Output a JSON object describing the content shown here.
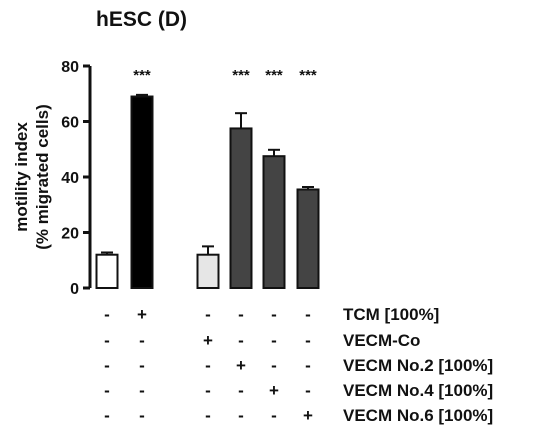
{
  "chart_data": {
    "type": "bar",
    "title": "hESC (D)",
    "ylabel_line1": "motility index",
    "ylabel_line2": "(% migrated cells)",
    "ylim": [
      0,
      80
    ],
    "yticks": [
      "0",
      "20",
      "40",
      "60",
      "80"
    ],
    "grid": false,
    "bars": [
      {
        "value": 12,
        "error": 0.8,
        "fill": "#ffffff",
        "significance": ""
      },
      {
        "value": 69,
        "error": 0.6,
        "fill": "#000000",
        "significance": "***"
      },
      {
        "value": 12,
        "error": 3.0,
        "fill": "#e6e6e6",
        "significance": ""
      },
      {
        "value": 57.5,
        "error": 5.5,
        "fill": "#444444",
        "significance": "***"
      },
      {
        "value": 47.5,
        "error": 2.3,
        "fill": "#444444",
        "significance": "***"
      },
      {
        "value": 35.5,
        "error": 0.9,
        "fill": "#444444",
        "significance": "***"
      }
    ],
    "conditions": [
      {
        "name": "TCM [100%]",
        "signs": [
          "-",
          "+",
          "-",
          "-",
          "-",
          "-"
        ]
      },
      {
        "name": "VECM-Co",
        "signs": [
          "-",
          "-",
          "+",
          "-",
          "-",
          "-"
        ]
      },
      {
        "name": "VECM No.2 [100%]",
        "signs": [
          "-",
          "-",
          "-",
          "+",
          "-",
          "-"
        ]
      },
      {
        "name": "VECM No.4 [100%]",
        "signs": [
          "-",
          "-",
          "-",
          "-",
          "+",
          "-"
        ]
      },
      {
        "name": "VECM No.6 [100%]",
        "signs": [
          "-",
          "-",
          "-",
          "-",
          "-",
          "+"
        ]
      }
    ]
  }
}
